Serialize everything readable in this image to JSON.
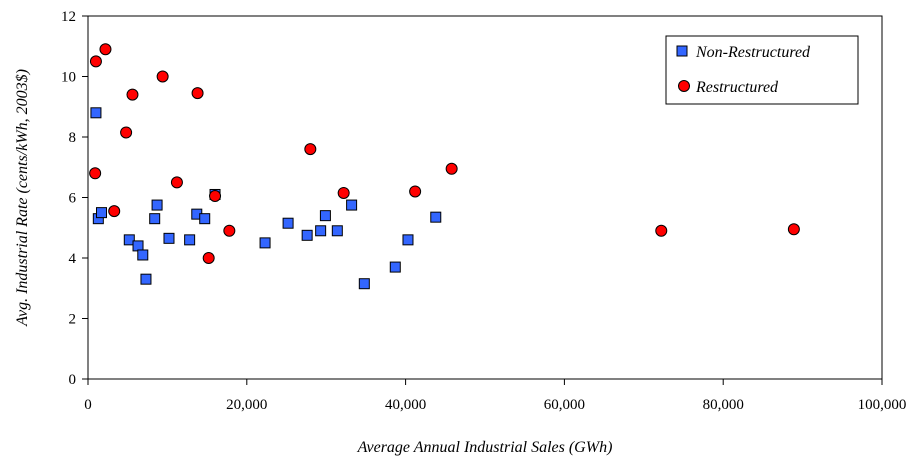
{
  "chart_data": {
    "type": "scatter",
    "xlabel": "Average Annual Industrial Sales (GWh)",
    "ylabel": "Avg. Industrial Rate (cents/kWh, 2003$)",
    "xlim": [
      0,
      100000
    ],
    "ylim": [
      0,
      12
    ],
    "x_ticks": [
      0,
      20000,
      40000,
      60000,
      80000,
      100000
    ],
    "x_tick_labels": [
      "0",
      "20,000",
      "40,000",
      "60,000",
      "80,000",
      "100,000"
    ],
    "y_ticks": [
      0,
      2,
      4,
      6,
      8,
      10,
      12
    ],
    "y_tick_labels": [
      "0",
      "2",
      "4",
      "6",
      "8",
      "10",
      "12"
    ],
    "grid": false,
    "legend_position": "top-right",
    "series": [
      {
        "name": "Non-Restructured",
        "marker": "square",
        "color": "#3366ff",
        "points": [
          [
            1000,
            8.8
          ],
          [
            1300,
            5.3
          ],
          [
            1700,
            5.5
          ],
          [
            5200,
            4.6
          ],
          [
            6300,
            4.4
          ],
          [
            6900,
            4.1
          ],
          [
            7300,
            3.3
          ],
          [
            8400,
            5.3
          ],
          [
            8700,
            5.75
          ],
          [
            10200,
            4.65
          ],
          [
            12800,
            4.6
          ],
          [
            13700,
            5.45
          ],
          [
            14700,
            5.3
          ],
          [
            16000,
            6.1
          ],
          [
            22300,
            4.5
          ],
          [
            25200,
            5.15
          ],
          [
            27600,
            4.75
          ],
          [
            29300,
            4.9
          ],
          [
            29900,
            5.4
          ],
          [
            31400,
            4.9
          ],
          [
            33200,
            5.75
          ],
          [
            34800,
            3.15
          ],
          [
            38700,
            3.7
          ],
          [
            40300,
            4.6
          ],
          [
            43800,
            5.35
          ]
        ]
      },
      {
        "name": "Restructured",
        "marker": "circle",
        "color": "#ff0000",
        "points": [
          [
            900,
            6.8
          ],
          [
            1000,
            10.5
          ],
          [
            2200,
            10.9
          ],
          [
            3300,
            5.55
          ],
          [
            4800,
            8.15
          ],
          [
            5600,
            9.4
          ],
          [
            9400,
            10.0
          ],
          [
            11200,
            6.5
          ],
          [
            13800,
            9.45
          ],
          [
            15200,
            4.0
          ],
          [
            16000,
            6.05
          ],
          [
            17800,
            4.9
          ],
          [
            28000,
            7.6
          ],
          [
            32200,
            6.15
          ],
          [
            41200,
            6.2
          ],
          [
            45800,
            6.95
          ],
          [
            72200,
            4.9
          ],
          [
            88900,
            4.95
          ]
        ]
      }
    ]
  }
}
